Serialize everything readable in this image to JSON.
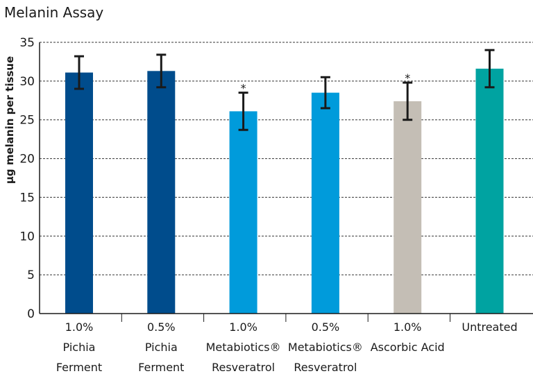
{
  "chart_data": {
    "type": "bar",
    "title": "Melanin Assay",
    "xlabel": "",
    "ylabel": "µg melanin per tissue",
    "ylim": [
      0,
      35
    ],
    "yticks": [
      0,
      5,
      10,
      15,
      20,
      25,
      30,
      35
    ],
    "grid": "dashed horizontal",
    "categories": [
      [
        "1.0%",
        "Pichia",
        "Ferment"
      ],
      [
        "0.5%",
        "Pichia",
        "Ferment"
      ],
      [
        "1.0%",
        "Metabiotics®",
        "Resveratrol"
      ],
      [
        "0.5%",
        "Metabiotics®",
        "Resveratrol"
      ],
      [
        "1.0%",
        "Ascorbic  Acid"
      ],
      [
        "Untreated"
      ]
    ],
    "values": [
      31.1,
      31.3,
      26.1,
      28.5,
      27.4,
      31.6
    ],
    "errors": [
      2.1,
      2.1,
      2.4,
      2.0,
      2.4,
      2.4
    ],
    "significance": [
      "",
      "",
      "*",
      "",
      "*",
      ""
    ],
    "colors": [
      "#004c8c",
      "#004c8c",
      "#009bdb",
      "#009bdb",
      "#c4beb5",
      "#00a3a1"
    ]
  }
}
